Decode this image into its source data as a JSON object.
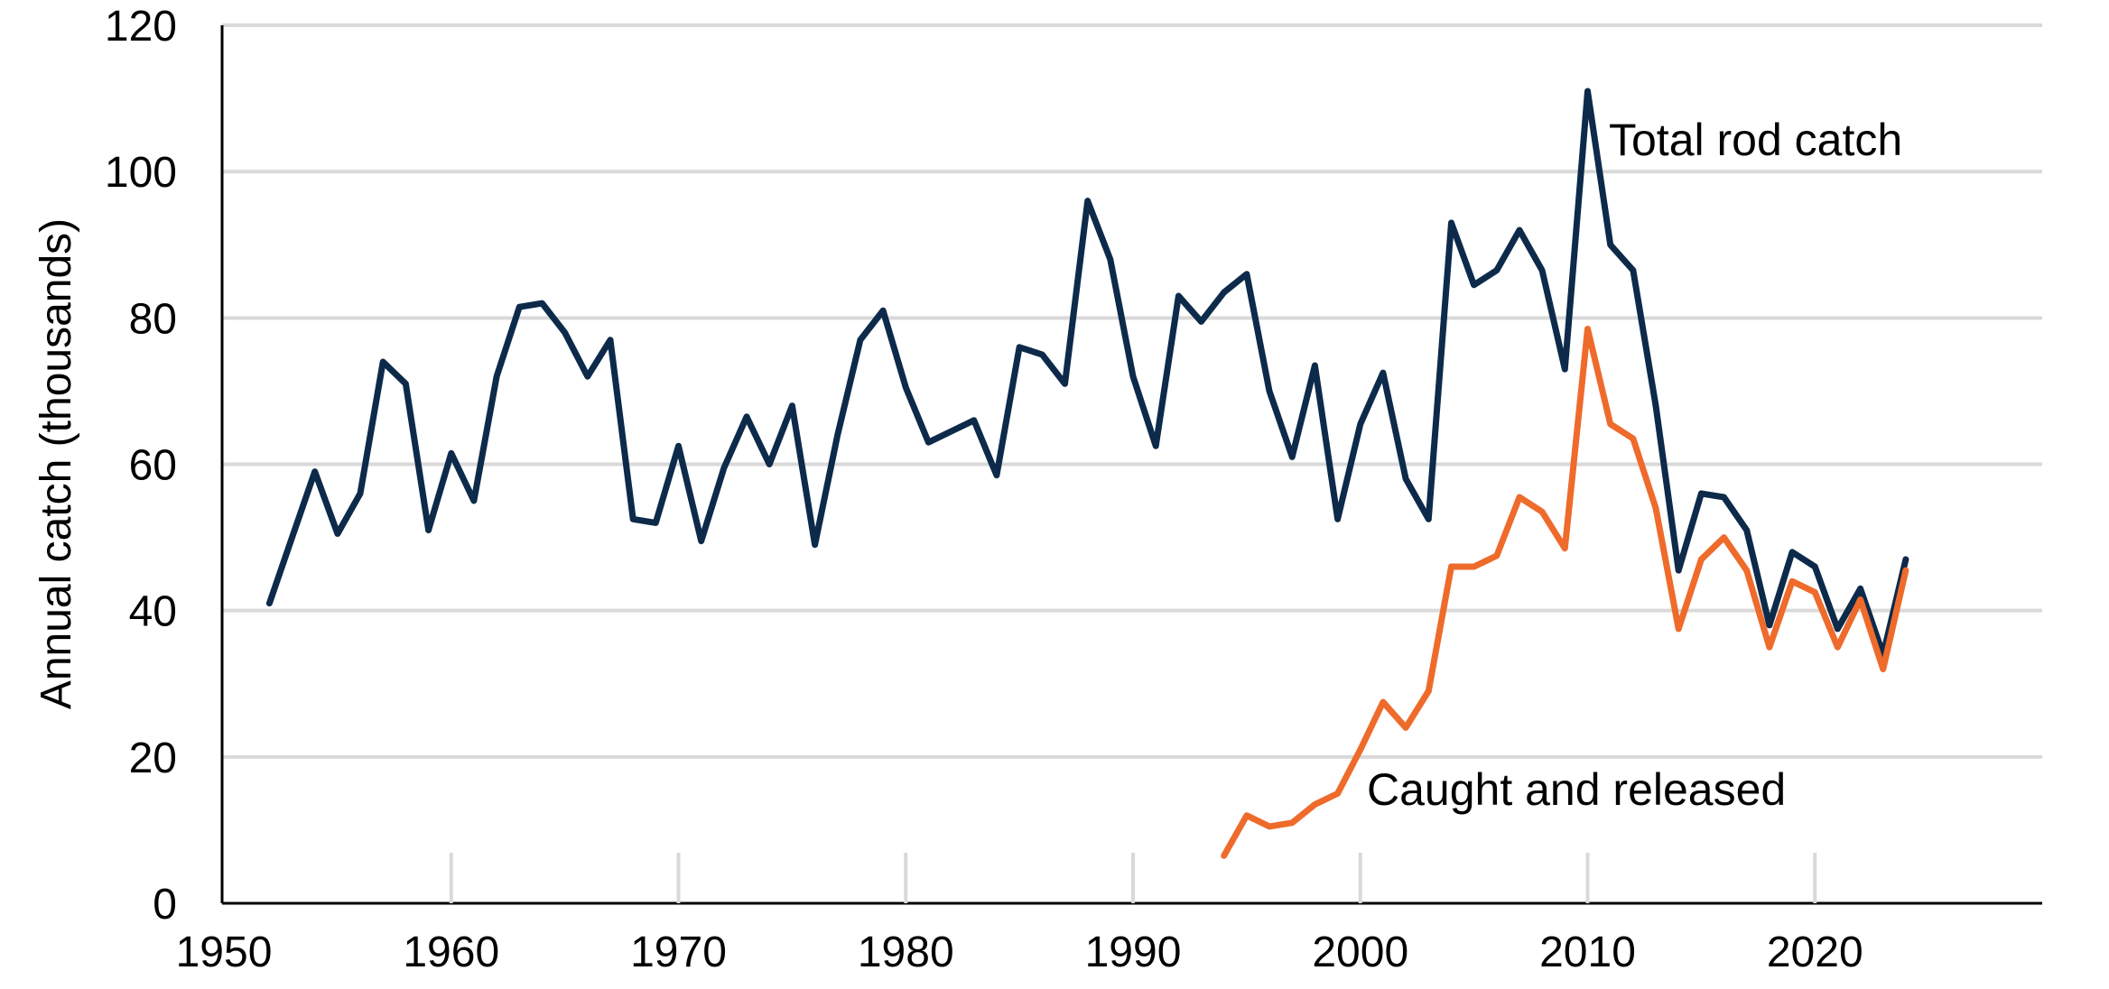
{
  "chart_data": {
    "type": "line",
    "title": "",
    "xlabel": "",
    "ylabel": "Annual catch (thousands)",
    "xlim": [
      1950,
      2030
    ],
    "ylim": [
      0,
      120
    ],
    "x_ticks": [
      1950,
      1960,
      1970,
      1980,
      1990,
      2000,
      2010,
      2020
    ],
    "y_ticks": [
      0,
      20,
      40,
      60,
      80,
      100,
      120
    ],
    "grid": "horizontal",
    "legend": "none",
    "series": [
      {
        "name": "Total rod catch",
        "color": "#0d2a4a",
        "x": [
          1952,
          1953,
          1954,
          1955,
          1956,
          1957,
          1958,
          1959,
          1960,
          1961,
          1962,
          1963,
          1964,
          1965,
          1966,
          1967,
          1968,
          1969,
          1970,
          1971,
          1972,
          1973,
          1974,
          1975,
          1976,
          1977,
          1978,
          1979,
          1980,
          1981,
          1982,
          1983,
          1984,
          1985,
          1986,
          1987,
          1988,
          1989,
          1990,
          1991,
          1992,
          1993,
          1994,
          1995,
          1996,
          1997,
          1998,
          1999,
          2000,
          2001,
          2002,
          2003,
          2004,
          2005,
          2006,
          2007,
          2008,
          2009,
          2010,
          2011,
          2012,
          2013,
          2014,
          2015,
          2016,
          2017,
          2018,
          2019,
          2020,
          2021,
          2022,
          2023,
          2024
        ],
        "values": [
          41,
          50,
          59,
          50.5,
          56,
          74,
          71,
          51,
          61.5,
          55,
          72,
          81.5,
          82,
          78,
          72,
          77,
          52.5,
          52,
          62.5,
          49.5,
          59.5,
          66.5,
          60,
          68,
          49,
          64,
          77,
          81,
          70.5,
          63,
          64.5,
          66,
          58.5,
          76,
          75,
          71,
          96,
          88,
          72,
          62.5,
          83,
          79.5,
          83.5,
          86,
          70,
          61,
          73.5,
          52.5,
          65.5,
          72.5,
          58,
          52.5,
          93,
          84.5,
          86.5,
          92,
          86.5,
          73,
          111,
          90,
          86.5,
          68,
          45.5,
          56,
          55.5,
          51,
          38,
          48,
          46,
          37.5,
          43,
          34,
          47
        ]
      },
      {
        "name": "Caught and released",
        "color": "#ee6b2b",
        "x": [
          1994,
          1995,
          1996,
          1997,
          1998,
          1999,
          2000,
          2001,
          2002,
          2003,
          2004,
          2005,
          2006,
          2007,
          2008,
          2009,
          2010,
          2011,
          2012,
          2013,
          2014,
          2015,
          2016,
          2017,
          2018,
          2019,
          2020,
          2021,
          2022,
          2023,
          2024
        ],
        "values": [
          6.5,
          12,
          10.5,
          11,
          13.5,
          15,
          21,
          27.5,
          24,
          29,
          46,
          46,
          47.5,
          55.5,
          53.5,
          48.5,
          78.5,
          65.5,
          63.5,
          54,
          37.5,
          47,
          50,
          45.5,
          35,
          44,
          42.5,
          35,
          41.5,
          32,
          45.5
        ]
      }
    ],
    "annotations": [
      {
        "text": "Total rod catch",
        "series": "Total rod catch"
      },
      {
        "text": "Caught and released",
        "series": "Caught and released"
      }
    ]
  }
}
